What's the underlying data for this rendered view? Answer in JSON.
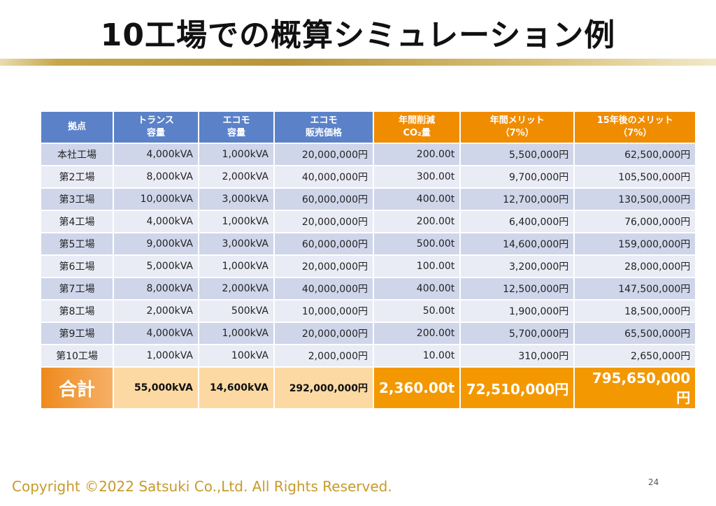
{
  "title": "10工場での概算シミュレーション例",
  "table": {
    "headers": [
      {
        "line1": "拠点",
        "line2": ""
      },
      {
        "line1": "トランス",
        "line2": "容量"
      },
      {
        "line1": "エコモ",
        "line2": "容量"
      },
      {
        "line1": "エコモ",
        "line2": "販売価格"
      },
      {
        "line1": "年間削減",
        "line2": "CO₂量"
      },
      {
        "line1": "年間メリット",
        "line2": "（7%）"
      },
      {
        "line1": "15年後のメリット",
        "line2": "（7%）"
      }
    ],
    "rows": [
      [
        "本社工場",
        "4,000kVA",
        "1,000kVA",
        "20,000,000円",
        "200.00t",
        "5,500,000円",
        "62,500,000円"
      ],
      [
        "第2工場",
        "8,000kVA",
        "2,000kVA",
        "40,000,000円",
        "300.00t",
        "9,700,000円",
        "105,500,000円"
      ],
      [
        "第3工場",
        "10,000kVA",
        "3,000kVA",
        "60,000,000円",
        "400.00t",
        "12,700,000円",
        "130,500,000円"
      ],
      [
        "第4工場",
        "4,000kVA",
        "1,000kVA",
        "20,000,000円",
        "200.00t",
        "6,400,000円",
        "76,000,000円"
      ],
      [
        "第5工場",
        "9,000kVA",
        "3,000kVA",
        "60,000,000円",
        "500.00t",
        "14,600,000円",
        "159,000,000円"
      ],
      [
        "第6工場",
        "5,000kVA",
        "1,000kVA",
        "20,000,000円",
        "100.00t",
        "3,200,000円",
        "28,000,000円"
      ],
      [
        "第7工場",
        "8,000kVA",
        "2,000kVA",
        "40,000,000円",
        "400.00t",
        "12,500,000円",
        "147,500,000円"
      ],
      [
        "第8工場",
        "2,000kVA",
        "500kVA",
        "10,000,000円",
        "50.00t",
        "1,900,000円",
        "18,500,000円"
      ],
      [
        "第9工場",
        "4,000kVA",
        "1,000kVA",
        "20,000,000円",
        "200.00t",
        "5,700,000円",
        "65,500,000円"
      ],
      [
        "第10工場",
        "1,000kVA",
        "100kVA",
        "2,000,000円",
        "10.00t",
        "310,000円",
        "2,650,000円"
      ]
    ],
    "total": [
      "合計",
      "55,000kVA",
      "14,600kVA",
      "292,000,000円",
      "2,360.00t",
      "72,510,000円",
      "795,650,000円"
    ]
  },
  "footer": {
    "copyright": "Copyright ©2022 Satsuki Co.,Ltd. All Rights Reserved.",
    "page_number": "24"
  },
  "colors": {
    "header_blue": "#5b82c8",
    "header_orange": "#f08c00",
    "total_orange": "#f39800",
    "total_light": "#fcd9a3",
    "copyright_gold": "#c89a2a"
  }
}
